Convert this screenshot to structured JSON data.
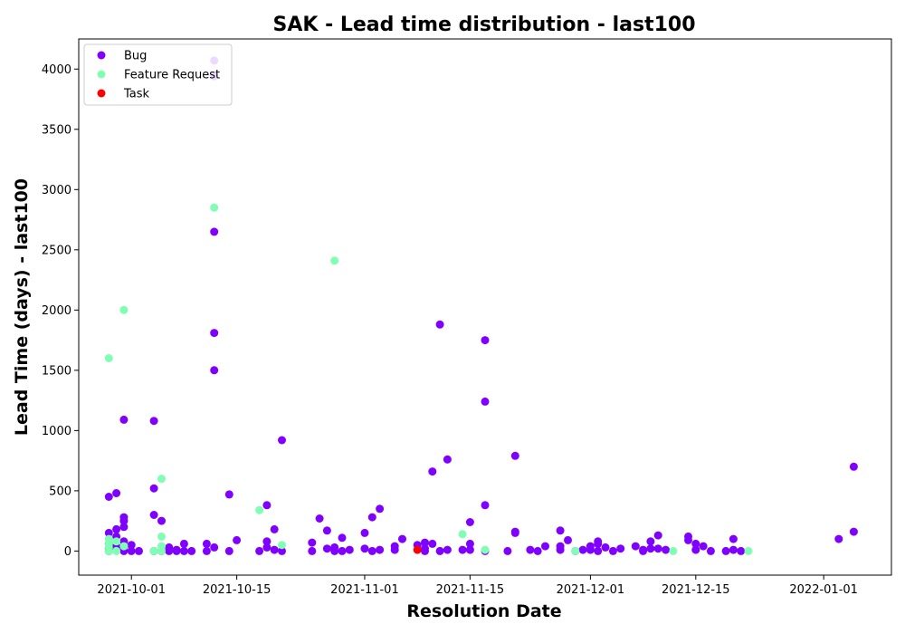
{
  "chart_data": {
    "type": "scatter",
    "title": "SAK - Lead time distribution - last100",
    "xlabel": "Resolution Date",
    "ylabel": "Lead Time (days) - last100",
    "x_axis_type": "date",
    "xlim": [
      "2021-09-24",
      "2022-01-10"
    ],
    "ylim": [
      -200,
      4250
    ],
    "x_ticks": [
      "2021-10-01",
      "2021-10-15",
      "2021-11-01",
      "2021-11-15",
      "2021-12-01",
      "2021-12-15",
      "2022-01-01"
    ],
    "y_ticks": [
      0,
      500,
      1000,
      1500,
      2000,
      2500,
      3000,
      3500,
      4000
    ],
    "grid": false,
    "legend_position": "upper-left",
    "series": [
      {
        "name": "Bug",
        "color": "#8000ff",
        "points": [
          [
            "2021-09-28",
            450
          ],
          [
            "2021-09-28",
            150
          ],
          [
            "2021-09-28",
            60
          ],
          [
            "2021-09-28",
            20
          ],
          [
            "2021-09-28",
            0
          ],
          [
            "2021-09-29",
            480
          ],
          [
            "2021-09-29",
            180
          ],
          [
            "2021-09-29",
            120
          ],
          [
            "2021-09-29",
            40
          ],
          [
            "2021-09-29",
            5
          ],
          [
            "2021-09-30",
            80
          ],
          [
            "2021-09-30",
            30
          ],
          [
            "2021-09-30",
            0
          ],
          [
            "2021-09-30",
            1090
          ],
          [
            "2021-09-30",
            280
          ],
          [
            "2021-09-30",
            250
          ],
          [
            "2021-09-30",
            200
          ],
          [
            "2021-10-01",
            50
          ],
          [
            "2021-10-01",
            0
          ],
          [
            "2021-10-02",
            0
          ],
          [
            "2021-10-04",
            1080
          ],
          [
            "2021-10-04",
            520
          ],
          [
            "2021-10-04",
            300
          ],
          [
            "2021-10-04",
            0
          ],
          [
            "2021-10-05",
            250
          ],
          [
            "2021-10-05",
            0
          ],
          [
            "2021-10-06",
            30
          ],
          [
            "2021-10-06",
            0
          ],
          [
            "2021-10-07",
            10
          ],
          [
            "2021-10-07",
            0
          ],
          [
            "2021-10-08",
            60
          ],
          [
            "2021-10-08",
            0
          ],
          [
            "2021-10-09",
            0
          ],
          [
            "2021-10-11",
            60
          ],
          [
            "2021-10-11",
            0
          ],
          [
            "2021-10-12",
            4070
          ],
          [
            "2021-10-12",
            3940
          ],
          [
            "2021-10-12",
            2650
          ],
          [
            "2021-10-12",
            1810
          ],
          [
            "2021-10-12",
            1500
          ],
          [
            "2021-10-12",
            30
          ],
          [
            "2021-10-14",
            470
          ],
          [
            "2021-10-14",
            0
          ],
          [
            "2021-10-15",
            90
          ],
          [
            "2021-10-18",
            0
          ],
          [
            "2021-10-19",
            30
          ],
          [
            "2021-10-19",
            380
          ],
          [
            "2021-10-19",
            80
          ],
          [
            "2021-10-20",
            180
          ],
          [
            "2021-10-20",
            10
          ],
          [
            "2021-10-21",
            920
          ],
          [
            "2021-10-21",
            0
          ],
          [
            "2021-10-25",
            70
          ],
          [
            "2021-10-25",
            0
          ],
          [
            "2021-10-26",
            270
          ],
          [
            "2021-10-27",
            170
          ],
          [
            "2021-10-27",
            20
          ],
          [
            "2021-10-28",
            0
          ],
          [
            "2021-10-28",
            30
          ],
          [
            "2021-10-29",
            110
          ],
          [
            "2021-10-29",
            0
          ],
          [
            "2021-10-30",
            10
          ],
          [
            "2021-11-01",
            20
          ],
          [
            "2021-11-01",
            150
          ],
          [
            "2021-11-02",
            0
          ],
          [
            "2021-11-02",
            280
          ],
          [
            "2021-11-03",
            10
          ],
          [
            "2021-11-03",
            350
          ],
          [
            "2021-11-05",
            40
          ],
          [
            "2021-11-05",
            10
          ],
          [
            "2021-11-06",
            100
          ],
          [
            "2021-11-08",
            50
          ],
          [
            "2021-11-09",
            20
          ],
          [
            "2021-11-09",
            0
          ],
          [
            "2021-11-09",
            70
          ],
          [
            "2021-11-10",
            660
          ],
          [
            "2021-11-10",
            60
          ],
          [
            "2021-11-11",
            1880
          ],
          [
            "2021-11-11",
            0
          ],
          [
            "2021-11-12",
            760
          ],
          [
            "2021-11-12",
            10
          ],
          [
            "2021-11-14",
            10
          ],
          [
            "2021-11-15",
            60
          ],
          [
            "2021-11-15",
            240
          ],
          [
            "2021-11-15",
            10
          ],
          [
            "2021-11-17",
            1750
          ],
          [
            "2021-11-17",
            1240
          ],
          [
            "2021-11-17",
            380
          ],
          [
            "2021-11-17",
            0
          ],
          [
            "2021-11-20",
            0
          ],
          [
            "2021-11-21",
            150
          ],
          [
            "2021-11-21",
            160
          ],
          [
            "2021-11-21",
            790
          ],
          [
            "2021-11-23",
            10
          ],
          [
            "2021-11-24",
            0
          ],
          [
            "2021-11-25",
            40
          ],
          [
            "2021-11-27",
            170
          ],
          [
            "2021-11-27",
            40
          ],
          [
            "2021-11-27",
            10
          ],
          [
            "2021-11-28",
            90
          ],
          [
            "2021-11-29",
            0
          ],
          [
            "2021-11-30",
            10
          ],
          [
            "2021-12-01",
            40
          ],
          [
            "2021-12-01",
            10
          ],
          [
            "2021-12-02",
            60
          ],
          [
            "2021-12-02",
            80
          ],
          [
            "2021-12-02",
            0
          ],
          [
            "2021-12-03",
            30
          ],
          [
            "2021-12-04",
            0
          ],
          [
            "2021-12-05",
            20
          ],
          [
            "2021-12-07",
            40
          ],
          [
            "2021-12-08",
            10
          ],
          [
            "2021-12-08",
            0
          ],
          [
            "2021-12-09",
            80
          ],
          [
            "2021-12-09",
            20
          ],
          [
            "2021-12-10",
            130
          ],
          [
            "2021-12-10",
            20
          ],
          [
            "2021-12-11",
            10
          ],
          [
            "2021-12-14",
            120
          ],
          [
            "2021-12-14",
            90
          ],
          [
            "2021-12-15",
            10
          ],
          [
            "2021-12-15",
            60
          ],
          [
            "2021-12-16",
            40
          ],
          [
            "2021-12-17",
            0
          ],
          [
            "2021-12-19",
            0
          ],
          [
            "2021-12-20",
            100
          ],
          [
            "2021-12-20",
            10
          ],
          [
            "2021-12-21",
            0
          ],
          [
            "2022-01-03",
            100
          ],
          [
            "2022-01-05",
            160
          ],
          [
            "2022-01-05",
            700
          ]
        ]
      },
      {
        "name": "Feature Request",
        "color": "#80ffb4",
        "points": [
          [
            "2021-09-28",
            1600
          ],
          [
            "2021-09-28",
            100
          ],
          [
            "2021-09-28",
            60
          ],
          [
            "2021-09-28",
            30
          ],
          [
            "2021-09-28",
            0
          ],
          [
            "2021-09-30",
            2000
          ],
          [
            "2021-09-30",
            40
          ],
          [
            "2021-09-29",
            80
          ],
          [
            "2021-09-29",
            0
          ],
          [
            "2021-10-05",
            600
          ],
          [
            "2021-10-05",
            120
          ],
          [
            "2021-10-05",
            40
          ],
          [
            "2021-10-05",
            0
          ],
          [
            "2021-10-04",
            0
          ],
          [
            "2021-10-12",
            2850
          ],
          [
            "2021-10-18",
            340
          ],
          [
            "2021-10-21",
            50
          ],
          [
            "2021-10-28",
            2410
          ],
          [
            "2021-11-14",
            140
          ],
          [
            "2021-11-17",
            10
          ],
          [
            "2021-11-29",
            0
          ],
          [
            "2021-12-12",
            0
          ],
          [
            "2021-12-22",
            0
          ]
        ]
      },
      {
        "name": "Task",
        "color": "#ff0000",
        "points": [
          [
            "2021-11-08",
            10
          ]
        ]
      }
    ]
  }
}
